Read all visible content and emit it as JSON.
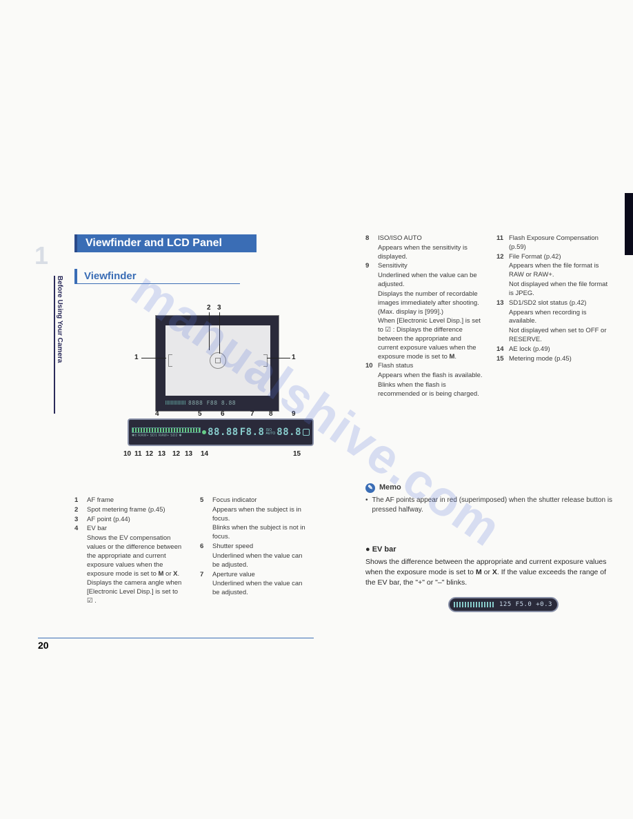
{
  "page_number": "20",
  "chapter_number": "1",
  "side_label": "Before Using Your Camera",
  "heading1": "Viewfinder and LCD Panel",
  "heading2": "Viewfinder",
  "watermark_text": "manualshive.com",
  "callouts_top": [
    "2",
    "3"
  ],
  "callouts_side": [
    "1",
    "1"
  ],
  "callouts_mid": [
    "4",
    "5",
    "6",
    "7",
    "8",
    "9"
  ],
  "callouts_bottom": [
    "10",
    "11",
    "12",
    "13",
    "12",
    "13",
    "14",
    "15"
  ],
  "lcd_segments": {
    "shutter": "88.88",
    "aperture": "F8.8",
    "iso_label": "ISO",
    "auto_label": "AUTO",
    "count": "88.8",
    "mini_bar": "8888 F88 8.88",
    "icons_row": "✱± RAW+ SD1 RAW+ SD2 ✱"
  },
  "legend_left": [
    {
      "n": "1",
      "t": "AF frame"
    },
    {
      "n": "2",
      "t": "Spot metering frame (p.45)"
    },
    {
      "n": "3",
      "t": "AF point (p.44)"
    },
    {
      "n": "4",
      "t": "EV bar",
      "subs": [
        "Shows the EV compensation values or the difference between the appropriate and current exposure values when the exposure mode is set to <b>M</b> or <b>X</b>.",
        "Displays the camera angle when [Electronic Level Disp.] is set to ☑ ."
      ]
    }
  ],
  "legend_mid": [
    {
      "n": "5",
      "t": "Focus indicator",
      "subs": [
        "Appears when the subject is in focus.",
        "Blinks when the subject is not in focus."
      ]
    },
    {
      "n": "6",
      "t": "Shutter speed",
      "subs": [
        "Underlined when the value can be adjusted."
      ]
    },
    {
      "n": "7",
      "t": "Aperture value",
      "subs": [
        "Underlined when the value can be adjusted."
      ]
    }
  ],
  "legend_r1": [
    {
      "n": "8",
      "t": "ISO/ISO AUTO",
      "subs": [
        "Appears when the sensitivity is displayed."
      ]
    },
    {
      "n": "9",
      "t": "Sensitivity",
      "subs": [
        "Underlined when the value can be adjusted.",
        "Displays the number of recordable images immediately after shooting. (Max. display is [999].)",
        "When [Electronic Level Disp.] is set to ☑ : Displays the difference between the appropriate and current exposure values when the exposure mode is set to <b>M</b>."
      ]
    },
    {
      "n": "10",
      "t": "Flash status",
      "subs": [
        "Appears when the flash is available.",
        "Blinks when the flash is recommended or is being charged."
      ]
    }
  ],
  "legend_r2": [
    {
      "n": "11",
      "t": "Flash Exposure Compensation (p.59)"
    },
    {
      "n": "12",
      "t": "File Format (p.42)",
      "subs": [
        "Appears when the file format is RAW or RAW+.",
        "Not displayed when the file format is JPEG."
      ]
    },
    {
      "n": "13",
      "t": "SD1/SD2 slot status (p.42)",
      "subs": [
        "Appears when recording is available.",
        "Not displayed when set to OFF or RESERVE."
      ]
    },
    {
      "n": "14",
      "t": "AE lock (p.49)"
    },
    {
      "n": "15",
      "t": "Metering mode (p.45)"
    }
  ],
  "memo": {
    "title": "Memo",
    "bullet": "The AF points appear in red (superimposed) when the shutter release button is pressed halfway."
  },
  "evbar": {
    "title": "EV bar",
    "body": "Shows the difference between the appropriate and current exposure values when the exposure mode is set to <b>M</b> or <b>X</b>. If the value exceeds the range of the EV bar, the \"+\" or \"–\" blinks.",
    "display_vals": "125  F5.0   +0.3"
  }
}
